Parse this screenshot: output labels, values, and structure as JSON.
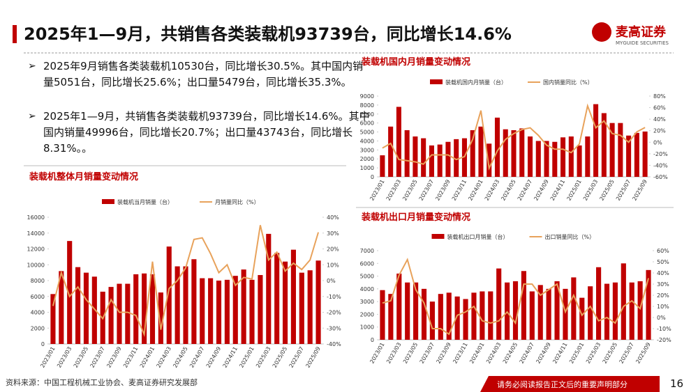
{
  "header": {
    "title": "2025年1—9月，共销售各类装载机93739台，同比增长14.6%",
    "logo": "麦高证券",
    "logo_sub": "MYGUIDE SECURITIES"
  },
  "bullets": [
    "2025年9月销售各类装载机10530台，同比增长30.5%。其中国内销量5051台，同比增长25.6%；出口量5479台，同比增长35.3%。",
    "2025年1—9月，共销售各类装载机93739台，同比增长14.6%。其中国内销量49996台，同比增长20.7%；出口量43743台，同比增长8.31%。。"
  ],
  "chart_data": [
    {
      "type": "bar",
      "title": "装载机整体月销量变动情况",
      "categories": [
        "2023/01",
        null,
        "2023/03",
        null,
        "2023/05",
        null,
        "2023/07",
        null,
        "2023/09",
        null,
        "2023/11",
        null,
        "2024/01",
        null,
        "2024/03",
        null,
        "2024/05",
        null,
        "2024/07",
        null,
        "2024/09",
        null,
        "2024/11",
        null,
        "2025/01",
        null,
        "2025/03",
        null,
        "2025/05",
        null,
        "2025/07",
        null,
        "2025/09"
      ],
      "series": [
        {
          "name": "装载机当月销量（台）",
          "type": "bar",
          "color": "#c00000",
          "values": [
            6300,
            9200,
            13000,
            9700,
            9000,
            8500,
            6600,
            7200,
            7600,
            7600,
            8800,
            8900,
            8800,
            6500,
            12300,
            9800,
            9800,
            10700,
            8300,
            8300,
            8000,
            8100,
            8600,
            9400,
            8100,
            8700,
            13900,
            11500,
            10400,
            11900,
            9000,
            9300,
            10530
          ]
        },
        {
          "name": "月销量同比（%）",
          "type": "line",
          "axis": "y2",
          "color": "#e8a25b",
          "values": [
            -16,
            5,
            -10,
            -4,
            -12,
            -18,
            -24,
            -12,
            -20,
            -20,
            -22,
            -34,
            12,
            -31,
            -5,
            0,
            8,
            26,
            27,
            17,
            5,
            10,
            -3,
            2,
            1,
            35,
            13,
            18,
            6,
            11,
            7,
            13,
            30.5
          ]
        }
      ],
      "ylim": [
        0,
        16000
      ],
      "yticks": [
        0,
        2000,
        4000,
        6000,
        8000,
        10000,
        12000,
        14000,
        16000
      ],
      "y2lim": [
        -40,
        40
      ],
      "y2ticks": [
        {
          "value": -40,
          "label": "-40%"
        },
        {
          "value": -30,
          "label": "-30%"
        },
        {
          "value": -20,
          "label": "-20%"
        },
        {
          "value": -10,
          "label": "-10%"
        },
        {
          "value": 0,
          "label": "0%"
        },
        {
          "value": 10,
          "label": "10%"
        },
        {
          "value": 20,
          "label": "20%"
        },
        {
          "value": 30,
          "label": "30%"
        },
        {
          "value": 40,
          "label": "40%"
        }
      ]
    },
    {
      "type": "bar",
      "title": "装载机国内月销量变动情况",
      "categories": [
        "2023/01",
        null,
        "2023/03",
        null,
        "2023/05",
        null,
        "2023/07",
        null,
        "2023/09",
        null,
        "2023/11",
        null,
        "2024/01",
        null,
        "2024/03",
        null,
        "2024/05",
        null,
        "2024/07",
        null,
        "2024/09",
        null,
        "2024/11",
        null,
        "2025/01",
        null,
        "2025/03",
        null,
        "2025/05",
        null,
        "2025/07",
        null,
        "2025/09"
      ],
      "series": [
        {
          "name": "装载机国内月销量（台）",
          "type": "bar",
          "color": "#c00000",
          "values": [
            2400,
            5600,
            7800,
            5200,
            4500,
            4300,
            3500,
            3600,
            3900,
            4200,
            4300,
            5200,
            5600,
            3700,
            6600,
            5300,
            5200,
            5400,
            4500,
            4000,
            4000,
            3900,
            4400,
            4500,
            3500,
            4500,
            8100,
            7100,
            6000,
            6000,
            4600,
            4900,
            5051
          ]
        },
        {
          "name": "国内销量同比（%）",
          "type": "line",
          "axis": "y2",
          "color": "#e8a25b",
          "values": [
            -10,
            -2,
            -30,
            -32,
            -34,
            -38,
            -22,
            -22,
            -22,
            -30,
            -25,
            5,
            55,
            -45,
            -15,
            5,
            15,
            22,
            25,
            12,
            -5,
            -12,
            -12,
            -18,
            -3,
            63,
            25,
            37,
            15,
            12,
            0,
            18,
            25.6
          ]
        }
      ],
      "ylim": [
        0,
        9000
      ],
      "yticks": [
        0,
        1000,
        2000,
        3000,
        4000,
        5000,
        6000,
        7000,
        8000,
        9000
      ],
      "y2lim": [
        -60,
        80
      ],
      "y2ticks": [
        {
          "value": -60,
          "label": "-60%"
        },
        {
          "value": -40,
          "label": "-40%"
        },
        {
          "value": -20,
          "label": "-20%"
        },
        {
          "value": 0,
          "label": "0%"
        },
        {
          "value": 20,
          "label": "20%"
        },
        {
          "value": 40,
          "label": "40%"
        },
        {
          "value": 60,
          "label": "60%"
        },
        {
          "value": 80,
          "label": "80%"
        }
      ]
    },
    {
      "type": "bar",
      "title": "装载机出口月销量变动情况",
      "categories": [
        "2023/01",
        null,
        "2023/03",
        null,
        "2023/05",
        null,
        "2023/07",
        null,
        "2023/09",
        null,
        "2023/11",
        null,
        "2024/01",
        null,
        "2024/03",
        null,
        "2024/05",
        null,
        "2024/07",
        null,
        "2024/09",
        null,
        "2024/11",
        null,
        "2025/01",
        null,
        "2025/03",
        null,
        "2025/05",
        null,
        "2025/07",
        null,
        "2025/09"
      ],
      "series": [
        {
          "name": "装载机出口月销量（台）",
          "type": "bar",
          "color": "#c00000",
          "values": [
            3900,
            3600,
            5200,
            4500,
            4500,
            4000,
            3000,
            3600,
            3700,
            3400,
            3200,
            3700,
            3800,
            3800,
            5600,
            4500,
            4600,
            5400,
            3800,
            4300,
            4000,
            4600,
            4000,
            4900,
            3300,
            4200,
            5700,
            4400,
            4500,
            6000,
            4500,
            4600,
            5479
          ]
        },
        {
          "name": "出口销量同比（%）",
          "type": "line",
          "axis": "y2",
          "color": "#e8a25b",
          "values": [
            13,
            15,
            38,
            52,
            25,
            13,
            -10,
            -10,
            -15,
            2,
            5,
            10,
            -3,
            -5,
            -3,
            5,
            -5,
            30,
            30,
            20,
            25,
            30,
            5,
            20,
            2,
            10,
            -3,
            0,
            -5,
            10,
            15,
            8,
            35.3
          ]
        }
      ],
      "ylim": [
        0,
        7000
      ],
      "yticks": [
        0,
        1000,
        2000,
        3000,
        4000,
        5000,
        6000,
        7000
      ],
      "y2lim": [
        -20,
        60
      ],
      "y2ticks": [
        {
          "value": -20,
          "label": "-20%"
        },
        {
          "value": -10,
          "label": "-10%"
        },
        {
          "value": 0,
          "label": "0%"
        },
        {
          "value": 10,
          "label": "10%"
        },
        {
          "value": 20,
          "label": "20%"
        },
        {
          "value": 30,
          "label": "30%"
        },
        {
          "value": 40,
          "label": "40%"
        },
        {
          "value": 50,
          "label": "50%"
        },
        {
          "value": 60,
          "label": "60%"
        }
      ]
    }
  ],
  "footer": {
    "source": "资料来源：中国工程机械工业协会、麦高证券研究发展部",
    "notice": "请务必阅读报告正文后的重要声明部分",
    "page": "16"
  }
}
